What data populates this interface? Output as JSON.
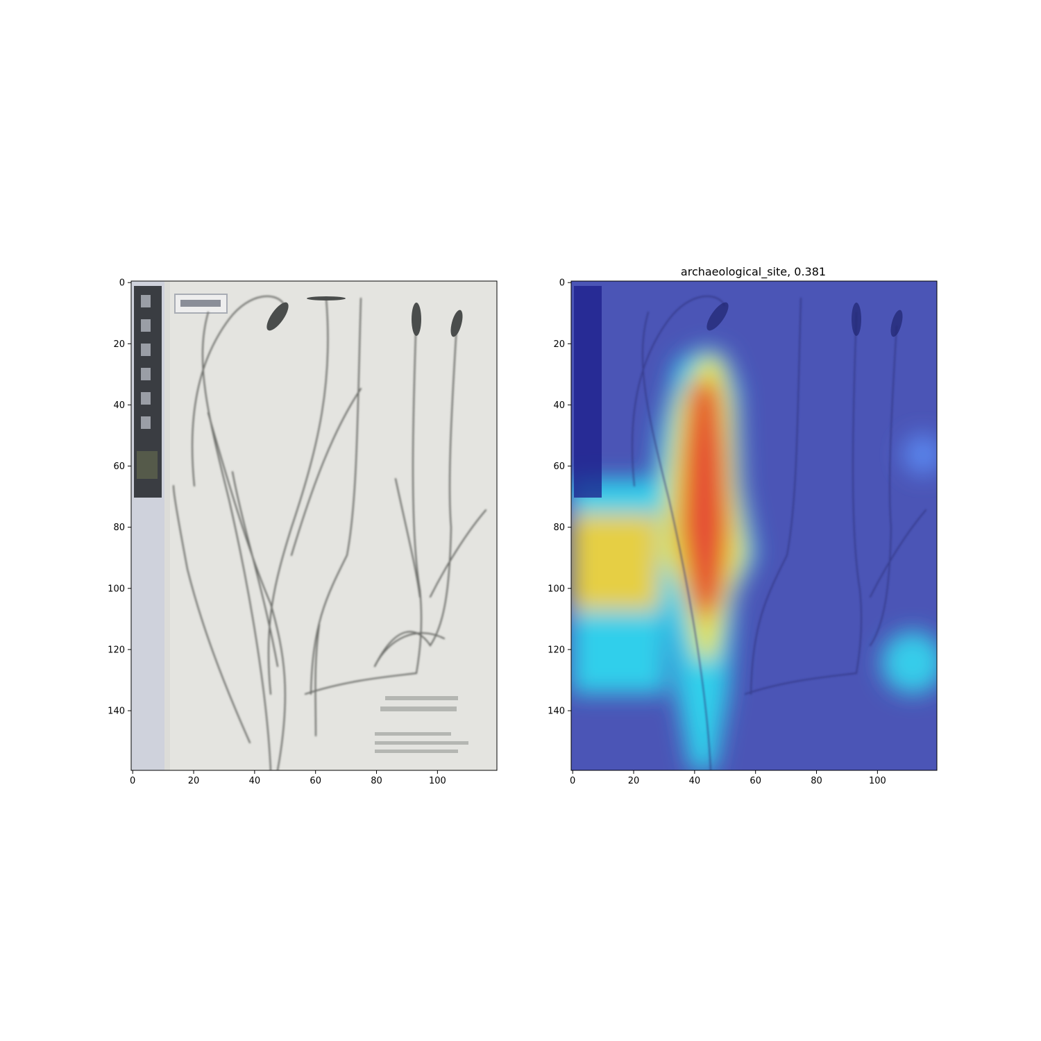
{
  "chart_data": [
    {
      "type": "heatmap",
      "content": "image",
      "title": "",
      "xlabel": "",
      "ylabel": "",
      "x_ticks": [
        0,
        20,
        40,
        60,
        80,
        100
      ],
      "y_ticks": [
        0,
        20,
        40,
        60,
        80,
        100,
        120,
        140
      ],
      "xlim": [
        -0.5,
        119.5
      ],
      "ylim": [
        159.5,
        -0.5
      ],
      "grid": false
    },
    {
      "type": "heatmap",
      "content": "image with class activation overlay",
      "title": "archaeological_site, 0.381",
      "xlabel": "",
      "ylabel": "",
      "x_ticks": [
        0,
        20,
        40,
        60,
        80,
        100
      ],
      "y_ticks": [
        0,
        20,
        40,
        60,
        80,
        100,
        120,
        140
      ],
      "xlim": [
        -0.5,
        119.5
      ],
      "ylim": [
        159.5,
        -0.5
      ],
      "grid": false,
      "colormap": "jet",
      "hotspots": [
        {
          "x": 43,
          "y": 58,
          "intensity": 1.0
        },
        {
          "x": 43,
          "y": 88,
          "intensity": 0.9
        },
        {
          "x": 5,
          "y": 90,
          "intensity": 0.7
        },
        {
          "x": 113,
          "y": 125,
          "intensity": 0.45
        }
      ]
    }
  ]
}
